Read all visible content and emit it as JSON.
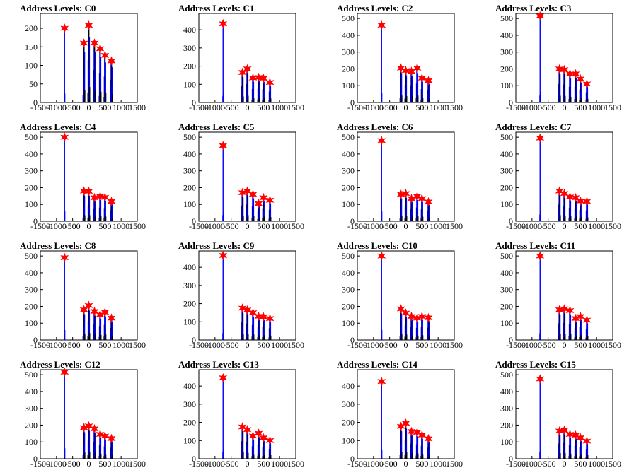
{
  "x_ticks": [
    -1500,
    -1000,
    -500,
    0,
    500,
    1000,
    1500
  ],
  "x_tick_labels": [
    "-1500",
    "-1000",
    "-500",
    "0",
    "500",
    "1000",
    "1500"
  ],
  "xlim": [
    -1500,
    1500
  ],
  "colors": {
    "hist_primary": "#0000ff",
    "hist_secondary": "#000000",
    "marker": "#ff0000"
  },
  "chart_data": [
    {
      "type": "bar",
      "title": "Address Levels: C0",
      "ylim": [
        0,
        240
      ],
      "y_ticks": [
        0,
        50,
        100,
        150,
        200
      ],
      "peaks_x": [
        -750,
        -150,
        0,
        175,
        350,
        500,
        700
      ],
      "peaks_y": [
        200,
        160,
        208,
        160,
        145,
        127,
        112
      ]
    },
    {
      "type": "bar",
      "title": "Address Levels: C1",
      "ylim": [
        0,
        490
      ],
      "y_ticks": [
        0,
        100,
        200,
        300,
        400
      ],
      "peaks_x": [
        -750,
        -150,
        0,
        175,
        350,
        500,
        700
      ],
      "peaks_y": [
        433,
        165,
        185,
        135,
        138,
        133,
        110
      ]
    },
    {
      "type": "bar",
      "title": "Address Levels: C2",
      "ylim": [
        0,
        530
      ],
      "y_ticks": [
        0,
        100,
        200,
        300,
        400,
        500
      ],
      "peaks_x": [
        -750,
        -150,
        0,
        175,
        350,
        500,
        700
      ],
      "peaks_y": [
        460,
        205,
        190,
        185,
        205,
        145,
        130
      ]
    },
    {
      "type": "bar",
      "title": "Address Levels: C3",
      "ylim": [
        0,
        530
      ],
      "y_ticks": [
        0,
        100,
        200,
        300,
        400,
        500
      ],
      "peaks_x": [
        -750,
        -150,
        0,
        175,
        350,
        500,
        700
      ],
      "peaks_y": [
        515,
        200,
        195,
        170,
        170,
        140,
        110
      ]
    },
    {
      "type": "bar",
      "title": "Address Levels: C4",
      "ylim": [
        0,
        530
      ],
      "y_ticks": [
        0,
        100,
        200,
        300,
        400,
        500
      ],
      "peaks_x": [
        -750,
        -150,
        0,
        175,
        350,
        500,
        700
      ],
      "peaks_y": [
        500,
        180,
        178,
        140,
        148,
        142,
        118
      ]
    },
    {
      "type": "bar",
      "title": "Address Levels: C5",
      "ylim": [
        0,
        530
      ],
      "y_ticks": [
        0,
        100,
        200,
        300,
        400,
        500
      ],
      "peaks_x": [
        -750,
        -150,
        0,
        175,
        350,
        500,
        700
      ],
      "peaks_y": [
        450,
        170,
        180,
        160,
        105,
        140,
        125
      ]
    },
    {
      "type": "bar",
      "title": "Address Levels: C6",
      "ylim": [
        0,
        530
      ],
      "y_ticks": [
        0,
        100,
        200,
        300,
        400,
        500
      ],
      "peaks_x": [
        -750,
        -150,
        0,
        175,
        350,
        500,
        700
      ],
      "peaks_y": [
        480,
        160,
        165,
        135,
        148,
        135,
        115
      ]
    },
    {
      "type": "bar",
      "title": "Address Levels: C7",
      "ylim": [
        0,
        530
      ],
      "y_ticks": [
        0,
        100,
        200,
        300,
        400,
        500
      ],
      "peaks_x": [
        -750,
        -150,
        0,
        175,
        350,
        500,
        700
      ],
      "peaks_y": [
        495,
        180,
        165,
        145,
        140,
        120,
        118
      ]
    },
    {
      "type": "bar",
      "title": "Address Levels: C8",
      "ylim": [
        0,
        530
      ],
      "y_ticks": [
        0,
        100,
        200,
        300,
        400,
        500
      ],
      "peaks_x": [
        -750,
        -150,
        0,
        175,
        350,
        500,
        700
      ],
      "peaks_y": [
        490,
        180,
        205,
        170,
        150,
        165,
        130
      ]
    },
    {
      "type": "bar",
      "title": "Address Levels: C9",
      "ylim": [
        0,
        490
      ],
      "y_ticks": [
        0,
        100,
        200,
        300,
        400
      ],
      "peaks_x": [
        -750,
        -150,
        0,
        175,
        350,
        500,
        700
      ],
      "peaks_y": [
        465,
        175,
        165,
        150,
        130,
        128,
        118
      ]
    },
    {
      "type": "bar",
      "title": "Address Levels: C10",
      "ylim": [
        0,
        530
      ],
      "y_ticks": [
        0,
        100,
        200,
        300,
        400,
        500
      ],
      "peaks_x": [
        -750,
        -150,
        0,
        175,
        350,
        500,
        700
      ],
      "peaks_y": [
        500,
        185,
        160,
        140,
        130,
        140,
        132
      ]
    },
    {
      "type": "bar",
      "title": "Address Levels: C11",
      "ylim": [
        0,
        530
      ],
      "y_ticks": [
        0,
        100,
        200,
        300,
        400,
        500
      ],
      "peaks_x": [
        -750,
        -150,
        0,
        175,
        350,
        500,
        700
      ],
      "peaks_y": [
        500,
        180,
        185,
        175,
        128,
        140,
        118
      ]
    },
    {
      "type": "bar",
      "title": "Address Levels: C12",
      "ylim": [
        0,
        530
      ],
      "y_ticks": [
        0,
        100,
        200,
        300,
        400,
        500
      ],
      "peaks_x": [
        -750,
        -150,
        0,
        175,
        350,
        500,
        700
      ],
      "peaks_y": [
        515,
        185,
        195,
        178,
        145,
        135,
        120
      ]
    },
    {
      "type": "bar",
      "title": "Address Levels: C13",
      "ylim": [
        0,
        490
      ],
      "y_ticks": [
        0,
        100,
        200,
        300,
        400
      ],
      "peaks_x": [
        -750,
        -150,
        0,
        175,
        350,
        500,
        700
      ],
      "peaks_y": [
        445,
        175,
        160,
        125,
        140,
        115,
        100
      ]
    },
    {
      "type": "bar",
      "title": "Address Levels: C14",
      "ylim": [
        0,
        490
      ],
      "y_ticks": [
        0,
        100,
        200,
        300,
        400
      ],
      "peaks_x": [
        -750,
        -150,
        0,
        175,
        350,
        500,
        700
      ],
      "peaks_y": [
        425,
        178,
        195,
        150,
        145,
        130,
        110
      ]
    },
    {
      "type": "bar",
      "title": "Address Levels: C15",
      "ylim": [
        0,
        530
      ],
      "y_ticks": [
        0,
        100,
        200,
        300,
        400,
        500
      ],
      "peaks_x": [
        -750,
        -150,
        0,
        175,
        350,
        500,
        700
      ],
      "peaks_y": [
        475,
        165,
        170,
        145,
        140,
        125,
        105
      ]
    }
  ]
}
